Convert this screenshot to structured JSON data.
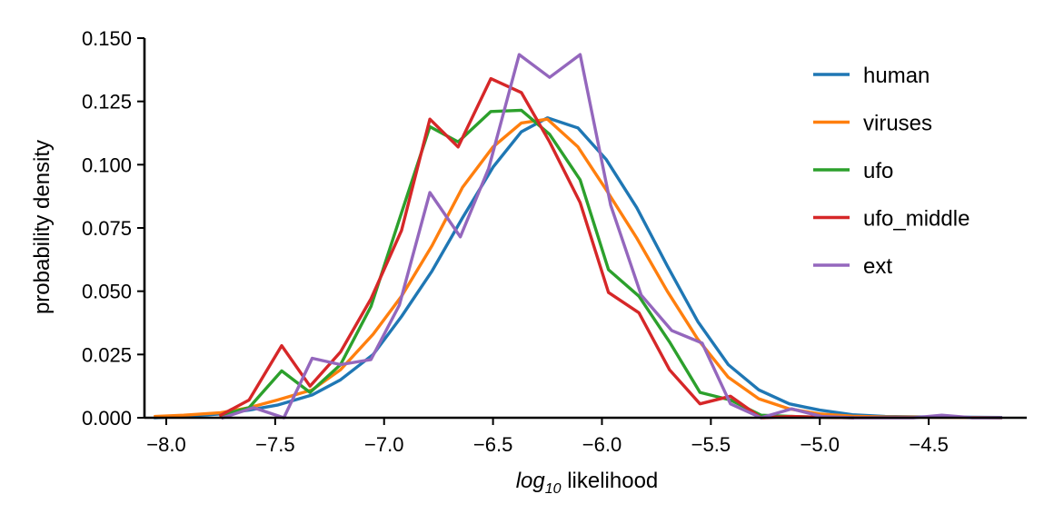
{
  "chart_data": {
    "type": "line",
    "title": "",
    "xlabel": "log10 likelihood",
    "xlabel_parts": {
      "base": "log",
      "subscript": "10",
      "rest": " likelihood"
    },
    "ylabel": "probability density",
    "xlim": [
      -8.1,
      -4.05
    ],
    "ylim": [
      0.0,
      0.15
    ],
    "x_ticks": [
      -8.0,
      -7.5,
      -7.0,
      -6.5,
      -6.0,
      -5.5,
      -5.0,
      -4.5
    ],
    "x_tick_labels": [
      "−8.0",
      "−7.5",
      "−7.0",
      "−6.5",
      "−6.0",
      "−5.5",
      "−5.0",
      "−4.5"
    ],
    "y_ticks": [
      0.0,
      0.025,
      0.05,
      0.075,
      0.1,
      0.125,
      0.15
    ],
    "y_tick_labels": [
      "0.000",
      "0.025",
      "0.050",
      "0.075",
      "0.100",
      "0.125",
      "0.150"
    ],
    "grid": false,
    "legend_position": "top-right",
    "series": [
      {
        "name": "human",
        "color": "#1f77b4",
        "x": [
          -8.05,
          -7.92,
          -7.75,
          -7.62,
          -7.49,
          -7.33,
          -7.2,
          -7.05,
          -6.92,
          -6.78,
          -6.64,
          -6.5,
          -6.37,
          -6.25,
          -6.11,
          -5.98,
          -5.84,
          -5.7,
          -5.56,
          -5.42,
          -5.28,
          -5.14,
          -5.0,
          -4.85,
          -4.7,
          -4.5,
          -4.3,
          -4.17
        ],
        "y": [
          0.0,
          0.0005,
          0.0015,
          0.003,
          0.005,
          0.009,
          0.015,
          0.025,
          0.04,
          0.058,
          0.079,
          0.099,
          0.113,
          0.1185,
          0.1145,
          0.102,
          0.083,
          0.06,
          0.038,
          0.021,
          0.011,
          0.0055,
          0.003,
          0.0012,
          0.0005,
          0.0003,
          0.0002,
          0.0001
        ]
      },
      {
        "name": "viruses",
        "color": "#ff7f0e",
        "x": [
          -8.05,
          -7.92,
          -7.75,
          -7.62,
          -7.49,
          -7.33,
          -7.2,
          -7.05,
          -6.92,
          -6.78,
          -6.64,
          -6.5,
          -6.37,
          -6.25,
          -6.11,
          -5.98,
          -5.84,
          -5.7,
          -5.56,
          -5.42,
          -5.28,
          -5.14,
          -5.0,
          -4.85,
          -4.7,
          -4.5,
          -4.3,
          -4.17
        ],
        "y": [
          0.0005,
          0.001,
          0.002,
          0.004,
          0.007,
          0.011,
          0.019,
          0.033,
          0.048,
          0.068,
          0.091,
          0.107,
          0.1165,
          0.118,
          0.107,
          0.09,
          0.071,
          0.05,
          0.031,
          0.016,
          0.0075,
          0.0035,
          0.0015,
          0.0006,
          0.0003,
          0.0002,
          0.0001,
          0.0
        ]
      },
      {
        "name": "ufo",
        "color": "#2ca02c",
        "x": [
          -7.75,
          -7.62,
          -7.47,
          -7.34,
          -7.2,
          -7.06,
          -6.92,
          -6.79,
          -6.66,
          -6.51,
          -6.37,
          -6.24,
          -6.1,
          -5.97,
          -5.83,
          -5.69,
          -5.55,
          -5.41,
          -5.27,
          -5.13,
          -4.99,
          -4.85
        ],
        "y": [
          0.001,
          0.004,
          0.0185,
          0.01,
          0.021,
          0.044,
          0.081,
          0.115,
          0.109,
          0.121,
          0.1215,
          0.112,
          0.094,
          0.0585,
          0.048,
          0.03,
          0.01,
          0.007,
          0.001,
          0.0005,
          0.0002,
          0.0
        ]
      },
      {
        "name": "ufo_middle",
        "color": "#d62728",
        "x": [
          -7.75,
          -7.62,
          -7.47,
          -7.34,
          -7.2,
          -7.06,
          -6.92,
          -6.79,
          -6.66,
          -6.51,
          -6.37,
          -6.24,
          -6.1,
          -5.97,
          -5.83,
          -5.69,
          -5.55,
          -5.41,
          -5.27,
          -5.13,
          -4.99,
          -4.85
        ],
        "y": [
          0.001,
          0.007,
          0.0285,
          0.0125,
          0.026,
          0.047,
          0.074,
          0.118,
          0.107,
          0.134,
          0.1285,
          0.109,
          0.085,
          0.0495,
          0.0415,
          0.019,
          0.0055,
          0.0085,
          0.0,
          0.0005,
          0.0002,
          0.0
        ]
      },
      {
        "name": "ext",
        "color": "#9467bd",
        "x": [
          -7.74,
          -7.6,
          -7.46,
          -7.33,
          -7.2,
          -7.06,
          -6.93,
          -6.79,
          -6.65,
          -6.52,
          -6.38,
          -6.24,
          -6.1,
          -5.96,
          -5.82,
          -5.68,
          -5.54,
          -5.41,
          -5.27,
          -5.13,
          -4.99,
          -4.85,
          -4.71,
          -4.57,
          -4.44,
          -4.3,
          -4.17
        ],
        "y": [
          0.0,
          0.004,
          0.0,
          0.0235,
          0.021,
          0.023,
          0.0445,
          0.089,
          0.0715,
          0.0985,
          0.1435,
          0.1345,
          0.1435,
          0.084,
          0.0485,
          0.0345,
          0.0295,
          0.0055,
          0.0,
          0.0035,
          0.0005,
          0.0,
          0.0,
          0.0,
          0.001,
          0.0,
          0.0
        ]
      }
    ]
  }
}
